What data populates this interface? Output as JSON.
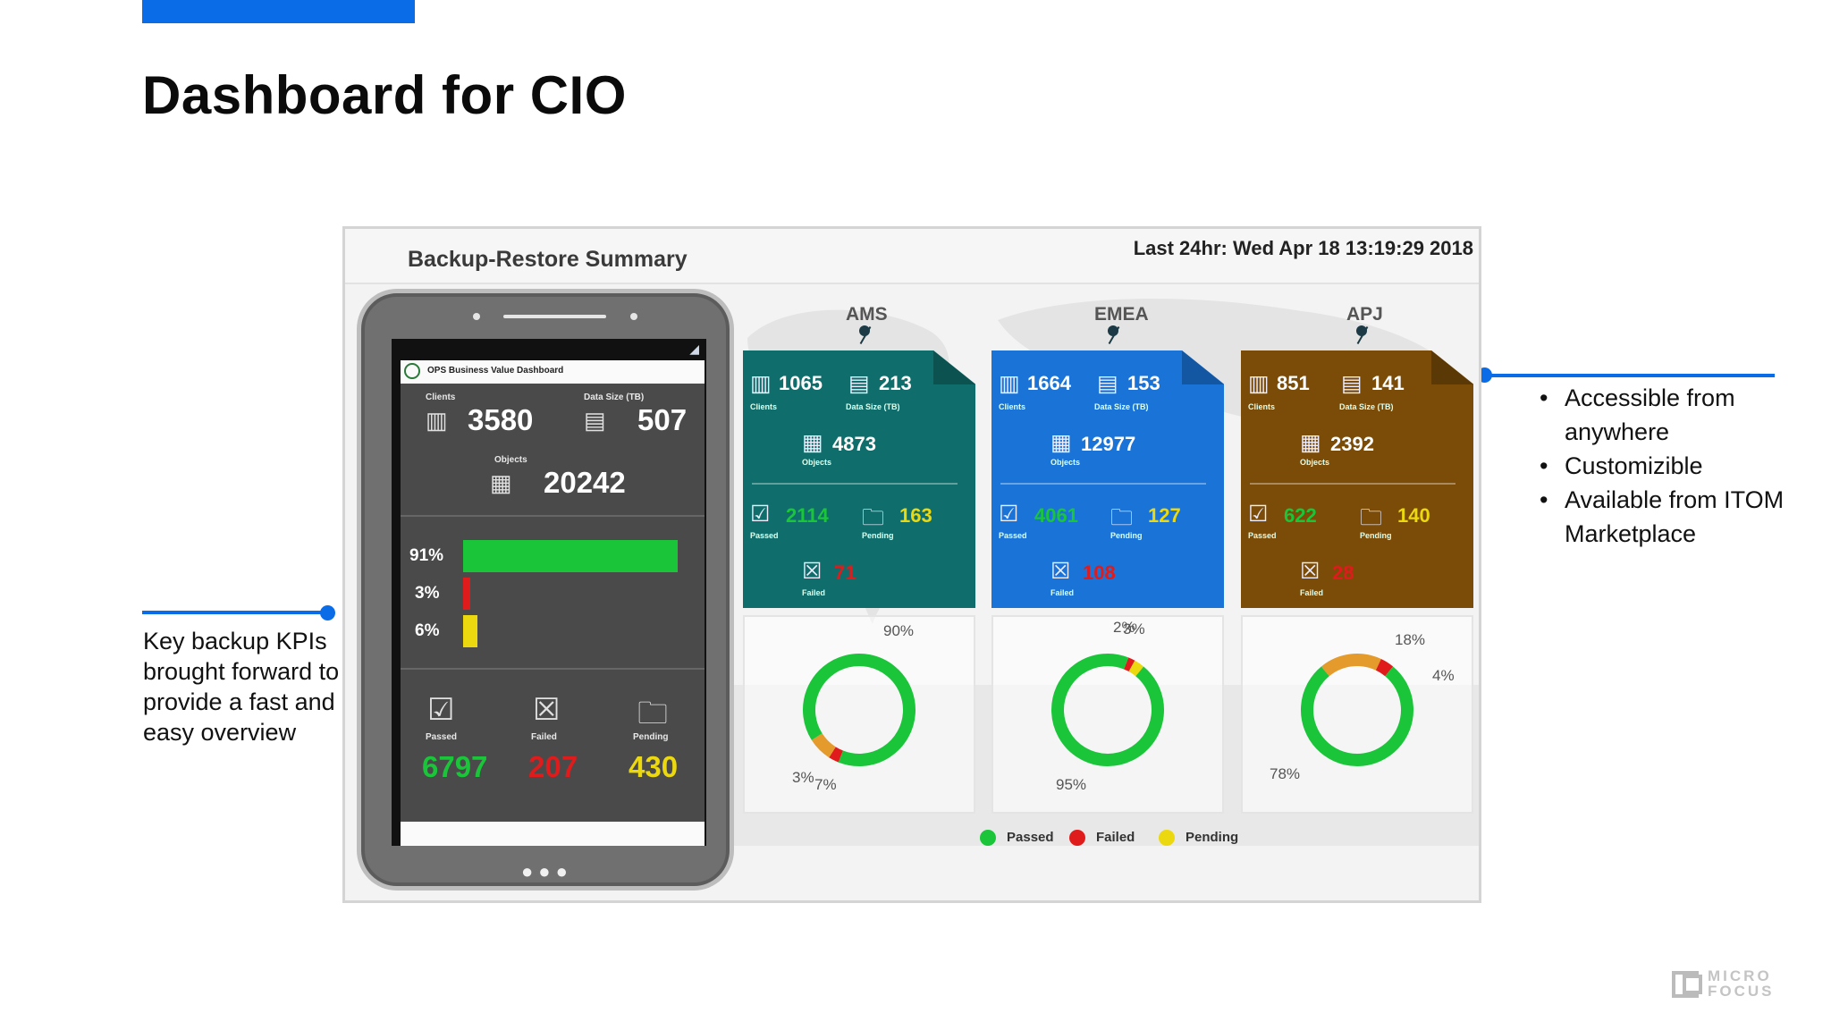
{
  "slide": {
    "title": "Dashboard for CIO",
    "left_callout": "Key backup KPIs brought forward to provide a fast and easy overview",
    "right_callout_items": [
      "Accessible from anywhere",
      "Customizible",
      "Available from ITOM Marketplace"
    ]
  },
  "dashboard": {
    "title": "Backup-Restore Summary",
    "timestamp": "Last 24hr: Wed Apr 18 13:19:29 2018",
    "legend": {
      "passed": "Passed",
      "failed": "Failed",
      "pending": "Pending"
    },
    "colors": {
      "passed": "#1bc53a",
      "failed": "#e01b1b",
      "pending": "#ecd80f",
      "ams": "#0f6e6b",
      "emea": "#1a74d8",
      "apj": "#7a4c08"
    }
  },
  "phone": {
    "app_title": "OPS Business Value Dashboard",
    "clients_label": "Clients",
    "clients": "3580",
    "datasize_label": "Data Size (TB)",
    "datasize": "507",
    "objects_label": "Objects",
    "objects": "20242",
    "bars": [
      {
        "label": "91%",
        "value": 91,
        "status": "passed"
      },
      {
        "label": "3%",
        "value": 3,
        "status": "failed"
      },
      {
        "label": "6%",
        "value": 6,
        "status": "pending"
      }
    ],
    "passed_label": "Passed",
    "passed": "6797",
    "failed_label": "Failed",
    "failed": "207",
    "pending_label": "Pending",
    "pending": "430"
  },
  "regions": [
    {
      "name": "AMS",
      "clients": "1065",
      "clients_label": "Clients",
      "datasize": "213",
      "datasize_label": "Data Size (TB)",
      "objects": "4873",
      "objects_label": "Objects",
      "passed": "2114",
      "passed_label": "Passed",
      "pending": "163",
      "pending_label": "Pending",
      "failed": "71",
      "failed_label": "Failed",
      "pct_passed": 90,
      "pct_failed": 3,
      "pct_pending": 7,
      "pct_labels": {
        "passed": "90%",
        "failed": "3%",
        "pending": "7%"
      }
    },
    {
      "name": "EMEA",
      "clients": "1664",
      "clients_label": "Clients",
      "datasize": "153",
      "datasize_label": "Data Size (TB)",
      "objects": "12977",
      "objects_label": "Objects",
      "passed": "4061",
      "passed_label": "Passed",
      "pending": "127",
      "pending_label": "Pending",
      "failed": "108",
      "failed_label": "Failed",
      "pct_passed": 95,
      "pct_failed": 2,
      "pct_pending": 3,
      "pct_labels": {
        "passed": "95%",
        "failed": "2%",
        "pending": "3%"
      }
    },
    {
      "name": "APJ",
      "clients": "851",
      "clients_label": "Clients",
      "datasize": "141",
      "datasize_label": "Data Size (TB)",
      "objects": "2392",
      "objects_label": "Objects",
      "passed": "622",
      "passed_label": "Passed",
      "pending": "140",
      "pending_label": "Pending",
      "failed": "28",
      "failed_label": "Failed",
      "pct_passed": 78,
      "pct_failed": 4,
      "pct_pending": 18,
      "pct_labels": {
        "passed": "78%",
        "failed": "4%",
        "pending": "18%"
      }
    }
  ],
  "logo": {
    "line1": "MICRO",
    "line2": "FOCUS"
  }
}
